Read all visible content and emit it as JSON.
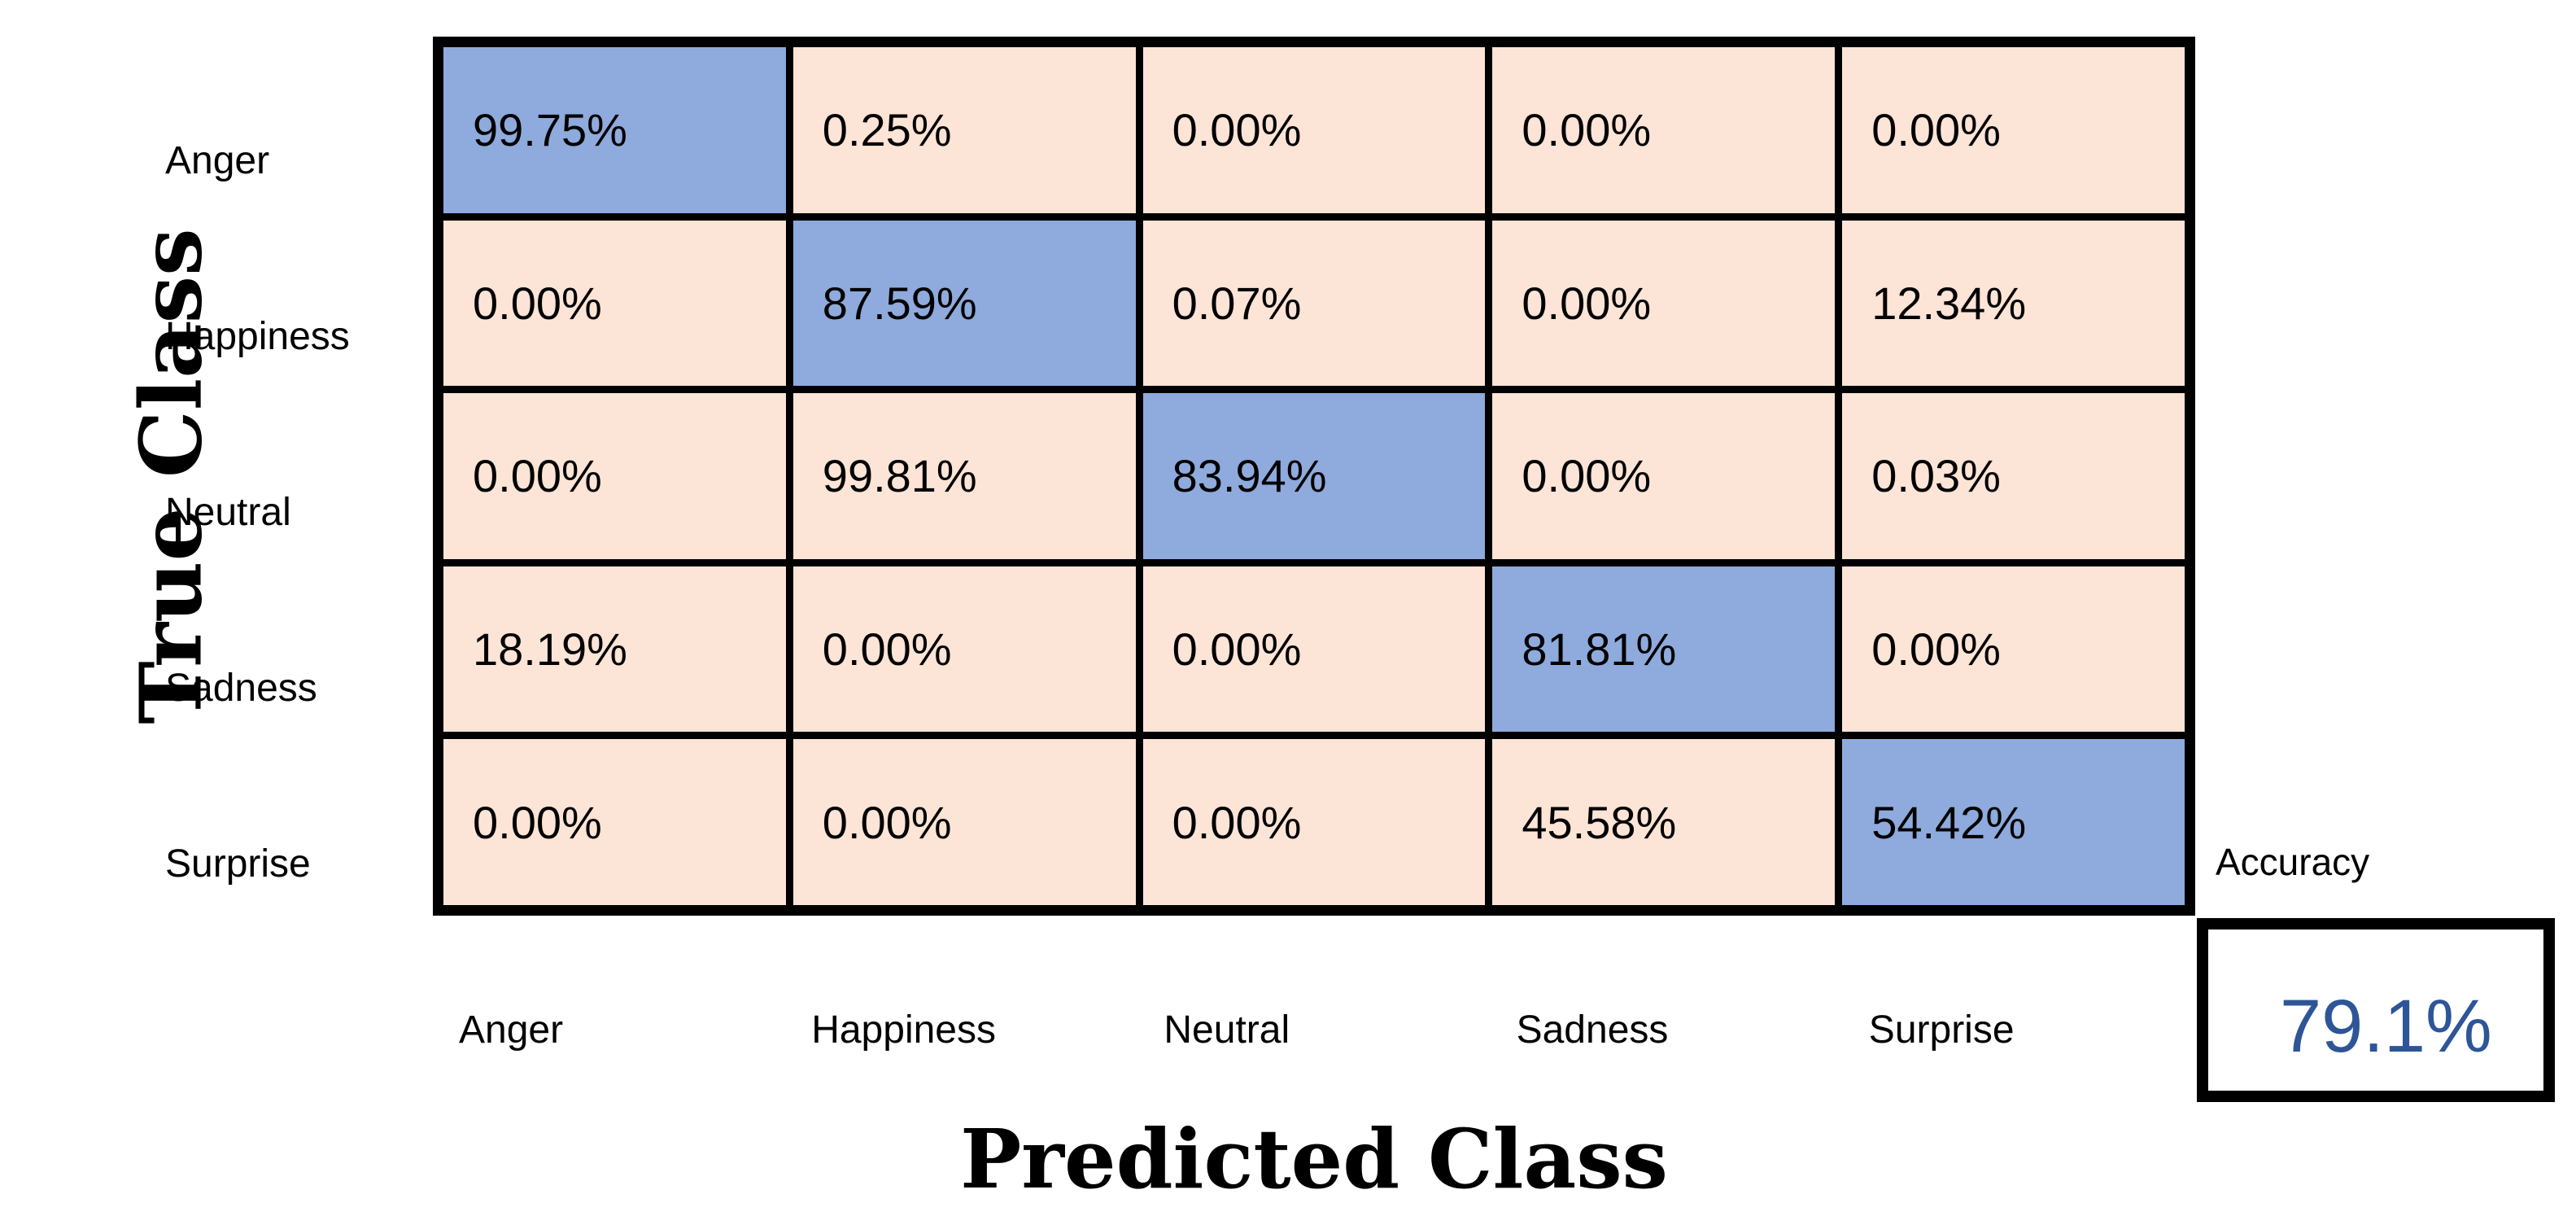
{
  "figure": {
    "y_axis_title": "True Class",
    "x_axis_title": "Predicted Class"
  },
  "accuracy": {
    "label": "Accuracy",
    "value": "79.1%"
  },
  "colors": {
    "diagonal_cell": "#8FAADC",
    "off_diagonal_cell": "#FCE4D6",
    "grid_line": "#000000",
    "accuracy_value_text": "#2E5597",
    "background": "#FFFFFF"
  },
  "chart_data": {
    "type": "heatmap",
    "title": "",
    "xlabel": "Predicted Class",
    "ylabel": "True Class",
    "x_categories": [
      "Anger",
      "Happiness",
      "Neutral",
      "Sadness",
      "Surprise"
    ],
    "y_categories": [
      "Anger",
      "Happiness",
      "Neutral",
      "Sadness",
      "Surprise"
    ],
    "values_percent": [
      [
        99.75,
        0.25,
        0.0,
        0.0,
        0.0
      ],
      [
        0.0,
        87.59,
        0.07,
        0.0,
        12.34
      ],
      [
        0.0,
        99.81,
        83.94,
        0.0,
        0.03
      ],
      [
        18.19,
        0.0,
        0.0,
        81.81,
        0.0
      ],
      [
        0.0,
        0.0,
        0.0,
        45.58,
        54.42
      ]
    ],
    "value_format": "two-decimal-percent",
    "diagonal_highlighted": true,
    "legend": "none",
    "overall_accuracy_percent": 79.1
  }
}
